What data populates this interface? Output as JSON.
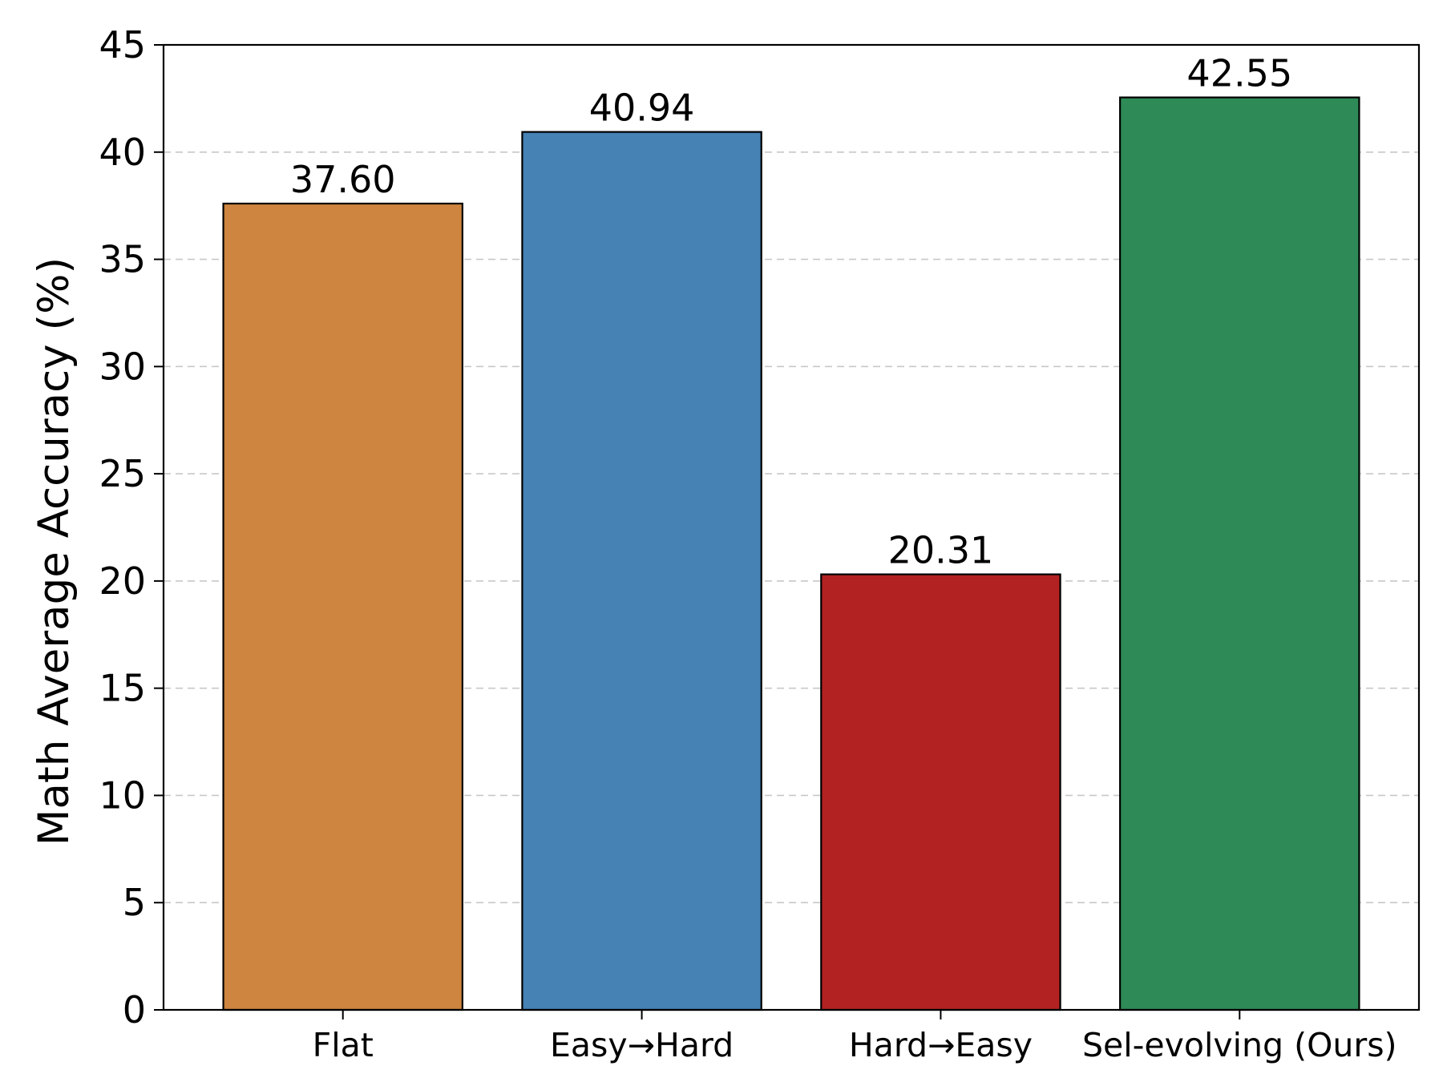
{
  "chart_data": {
    "type": "bar",
    "title": "",
    "xlabel": "",
    "ylabel": "Math Average Accuracy (%)",
    "categories": [
      "Flat",
      "Easy→Hard",
      "Hard→Easy",
      "Sel-evolving (Ours)"
    ],
    "values": [
      37.6,
      40.94,
      20.31,
      42.55
    ],
    "value_labels": [
      "37.60",
      "40.94",
      "20.31",
      "42.55"
    ],
    "colors": [
      "#CD853F",
      "#4682B4",
      "#B22222",
      "#2E8B57"
    ],
    "edge_color": "#000000",
    "ylim": [
      0,
      45
    ],
    "yticks": [
      0,
      5,
      10,
      15,
      20,
      25,
      30,
      35,
      40,
      45
    ],
    "grid": "y-dashed",
    "legend": "none"
  }
}
